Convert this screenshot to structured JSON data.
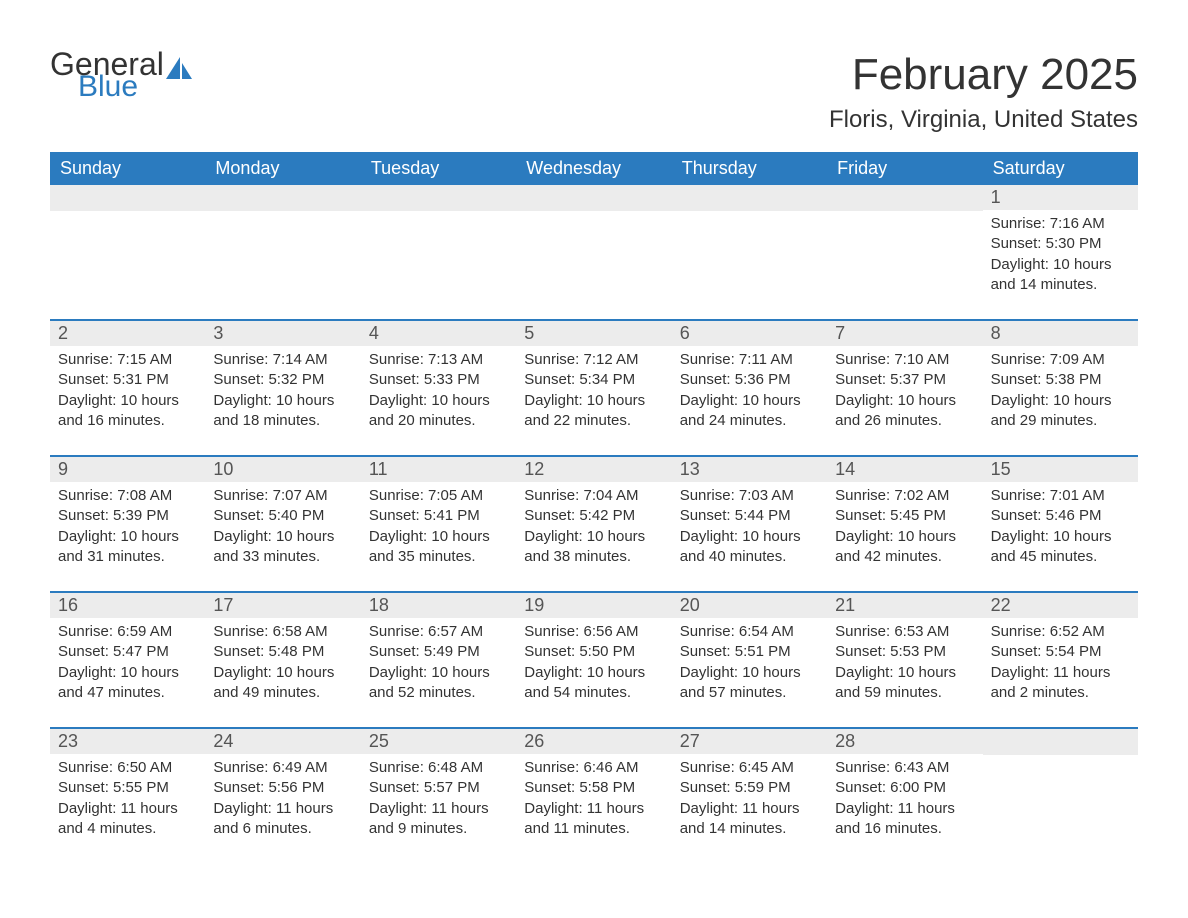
{
  "brand": {
    "text1": "General",
    "text2": "Blue",
    "color_general": "#333333",
    "color_blue": "#2b7bbf"
  },
  "title": "February 2025",
  "location": "Floris, Virginia, United States",
  "header_bg": "#2b7bbf",
  "daynum_bg": "#ececec",
  "weekdays": [
    "Sunday",
    "Monday",
    "Tuesday",
    "Wednesday",
    "Thursday",
    "Friday",
    "Saturday"
  ],
  "weeks": [
    [
      null,
      null,
      null,
      null,
      null,
      null,
      {
        "n": "1",
        "sunrise": "7:16 AM",
        "sunset": "5:30 PM",
        "daylight": "10 hours and 14 minutes."
      }
    ],
    [
      {
        "n": "2",
        "sunrise": "7:15 AM",
        "sunset": "5:31 PM",
        "daylight": "10 hours and 16 minutes."
      },
      {
        "n": "3",
        "sunrise": "7:14 AM",
        "sunset": "5:32 PM",
        "daylight": "10 hours and 18 minutes."
      },
      {
        "n": "4",
        "sunrise": "7:13 AM",
        "sunset": "5:33 PM",
        "daylight": "10 hours and 20 minutes."
      },
      {
        "n": "5",
        "sunrise": "7:12 AM",
        "sunset": "5:34 PM",
        "daylight": "10 hours and 22 minutes."
      },
      {
        "n": "6",
        "sunrise": "7:11 AM",
        "sunset": "5:36 PM",
        "daylight": "10 hours and 24 minutes."
      },
      {
        "n": "7",
        "sunrise": "7:10 AM",
        "sunset": "5:37 PM",
        "daylight": "10 hours and 26 minutes."
      },
      {
        "n": "8",
        "sunrise": "7:09 AM",
        "sunset": "5:38 PM",
        "daylight": "10 hours and 29 minutes."
      }
    ],
    [
      {
        "n": "9",
        "sunrise": "7:08 AM",
        "sunset": "5:39 PM",
        "daylight": "10 hours and 31 minutes."
      },
      {
        "n": "10",
        "sunrise": "7:07 AM",
        "sunset": "5:40 PM",
        "daylight": "10 hours and 33 minutes."
      },
      {
        "n": "11",
        "sunrise": "7:05 AM",
        "sunset": "5:41 PM",
        "daylight": "10 hours and 35 minutes."
      },
      {
        "n": "12",
        "sunrise": "7:04 AM",
        "sunset": "5:42 PM",
        "daylight": "10 hours and 38 minutes."
      },
      {
        "n": "13",
        "sunrise": "7:03 AM",
        "sunset": "5:44 PM",
        "daylight": "10 hours and 40 minutes."
      },
      {
        "n": "14",
        "sunrise": "7:02 AM",
        "sunset": "5:45 PM",
        "daylight": "10 hours and 42 minutes."
      },
      {
        "n": "15",
        "sunrise": "7:01 AM",
        "sunset": "5:46 PM",
        "daylight": "10 hours and 45 minutes."
      }
    ],
    [
      {
        "n": "16",
        "sunrise": "6:59 AM",
        "sunset": "5:47 PM",
        "daylight": "10 hours and 47 minutes."
      },
      {
        "n": "17",
        "sunrise": "6:58 AM",
        "sunset": "5:48 PM",
        "daylight": "10 hours and 49 minutes."
      },
      {
        "n": "18",
        "sunrise": "6:57 AM",
        "sunset": "5:49 PM",
        "daylight": "10 hours and 52 minutes."
      },
      {
        "n": "19",
        "sunrise": "6:56 AM",
        "sunset": "5:50 PM",
        "daylight": "10 hours and 54 minutes."
      },
      {
        "n": "20",
        "sunrise": "6:54 AM",
        "sunset": "5:51 PM",
        "daylight": "10 hours and 57 minutes."
      },
      {
        "n": "21",
        "sunrise": "6:53 AM",
        "sunset": "5:53 PM",
        "daylight": "10 hours and 59 minutes."
      },
      {
        "n": "22",
        "sunrise": "6:52 AM",
        "sunset": "5:54 PM",
        "daylight": "11 hours and 2 minutes."
      }
    ],
    [
      {
        "n": "23",
        "sunrise": "6:50 AM",
        "sunset": "5:55 PM",
        "daylight": "11 hours and 4 minutes."
      },
      {
        "n": "24",
        "sunrise": "6:49 AM",
        "sunset": "5:56 PM",
        "daylight": "11 hours and 6 minutes."
      },
      {
        "n": "25",
        "sunrise": "6:48 AM",
        "sunset": "5:57 PM",
        "daylight": "11 hours and 9 minutes."
      },
      {
        "n": "26",
        "sunrise": "6:46 AM",
        "sunset": "5:58 PM",
        "daylight": "11 hours and 11 minutes."
      },
      {
        "n": "27",
        "sunrise": "6:45 AM",
        "sunset": "5:59 PM",
        "daylight": "11 hours and 14 minutes."
      },
      {
        "n": "28",
        "sunrise": "6:43 AM",
        "sunset": "6:00 PM",
        "daylight": "11 hours and 16 minutes."
      },
      null
    ]
  ],
  "labels": {
    "sunrise": "Sunrise: ",
    "sunset": "Sunset: ",
    "daylight": "Daylight: "
  }
}
